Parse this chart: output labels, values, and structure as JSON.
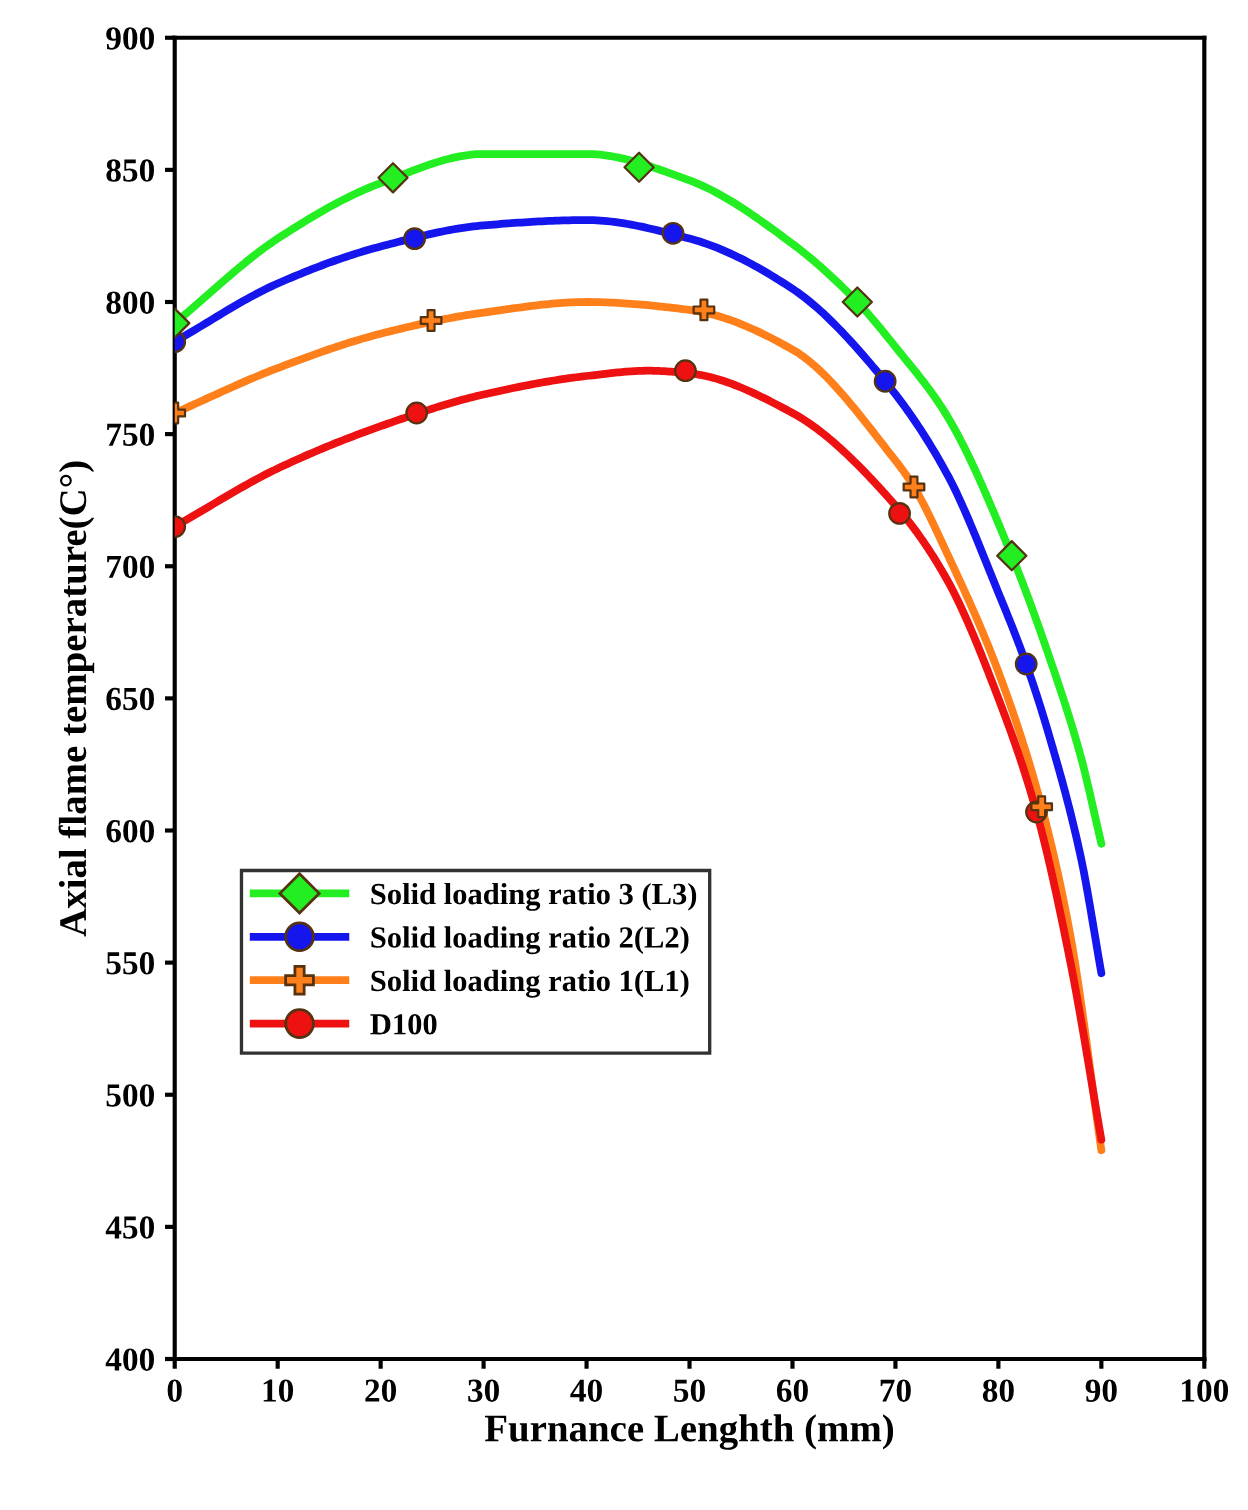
{
  "chart_data": {
    "type": "line",
    "xlabel": "Furnance Lenghth (mm)",
    "ylabel": "Axial flame temperature(C°)",
    "xlim": [
      0,
      100
    ],
    "xticks": [
      0,
      10,
      20,
      30,
      40,
      50,
      60,
      70,
      80,
      90,
      100
    ],
    "ylim": [
      400,
      900
    ],
    "yticks": [
      400,
      450,
      500,
      550,
      600,
      650,
      700,
      750,
      800,
      850,
      900
    ],
    "grid": false,
    "legend": "bottom left",
    "line_style": "solid",
    "series": [
      {
        "name": "Solid loading ratio 3 (L3)",
        "color": "#22ee22",
        "marker": "none",
        "x": [
          0,
          10,
          20,
          30,
          40,
          50,
          60,
          66.3,
          70,
          75,
          81.3,
          85,
          88,
          90
        ],
        "values": [
          792,
          824,
          845,
          856,
          856,
          846,
          822,
          800,
          783,
          757,
          704,
          665,
          628,
          595
        ]
      },
      {
        "name": "Solid loading ratio 2(L2)",
        "color": "#1515ee",
        "marker": "none",
        "x": [
          0,
          10,
          20,
          30,
          40,
          50,
          60,
          69,
          75,
          80,
          82.7,
          85,
          88,
          90
        ],
        "values": [
          785,
          807,
          821,
          829,
          831,
          824,
          805,
          770,
          735,
          690,
          663,
          635,
          590,
          546
        ]
      },
      {
        "name": "Solid loading ratio 1(L1)",
        "color": "#ff7f1a",
        "marker": "none",
        "x": [
          0,
          10,
          20,
          30,
          40,
          50,
          60,
          70,
          71.8,
          75,
          80,
          84.2,
          87,
          90
        ],
        "values": [
          758,
          775,
          788,
          796,
          800,
          797,
          782,
          740,
          730,
          705,
          660,
          609,
          560,
          479
        ]
      },
      {
        "name": "D100",
        "color": "#ee1111",
        "marker": "none",
        "x": [
          0,
          10,
          20,
          30,
          40,
          46,
          50,
          60,
          70,
          75,
          80,
          83.7,
          87,
          90
        ],
        "values": [
          715,
          737,
          753,
          765,
          772,
          774,
          773,
          758,
          723,
          695,
          650,
          607,
          550,
          483
        ]
      },
      {
        "type": "scatter",
        "color": "#22ee22",
        "marker": "diamond",
        "x": [
          0,
          21.2,
          45.1,
          66.3,
          81.3
        ],
        "values": [
          792,
          847,
          851,
          800,
          704
        ]
      },
      {
        "type": "scatter",
        "color": "#1515ee",
        "marker": "circle",
        "x": [
          0,
          23.3,
          48.4,
          69,
          82.7
        ],
        "values": [
          785,
          824,
          826,
          770,
          663
        ]
      },
      {
        "type": "scatter",
        "color": "#ff7f1a",
        "marker": "cross",
        "x": [
          0,
          24.9,
          51.4,
          71.8,
          84.2
        ],
        "values": [
          758,
          793,
          797,
          730,
          609
        ]
      },
      {
        "type": "scatter",
        "color": "#ee1111",
        "marker": "circle",
        "x": [
          0,
          23.5,
          49.6,
          70.4,
          83.7
        ],
        "values": [
          715,
          758,
          774,
          720,
          607
        ]
      }
    ]
  }
}
